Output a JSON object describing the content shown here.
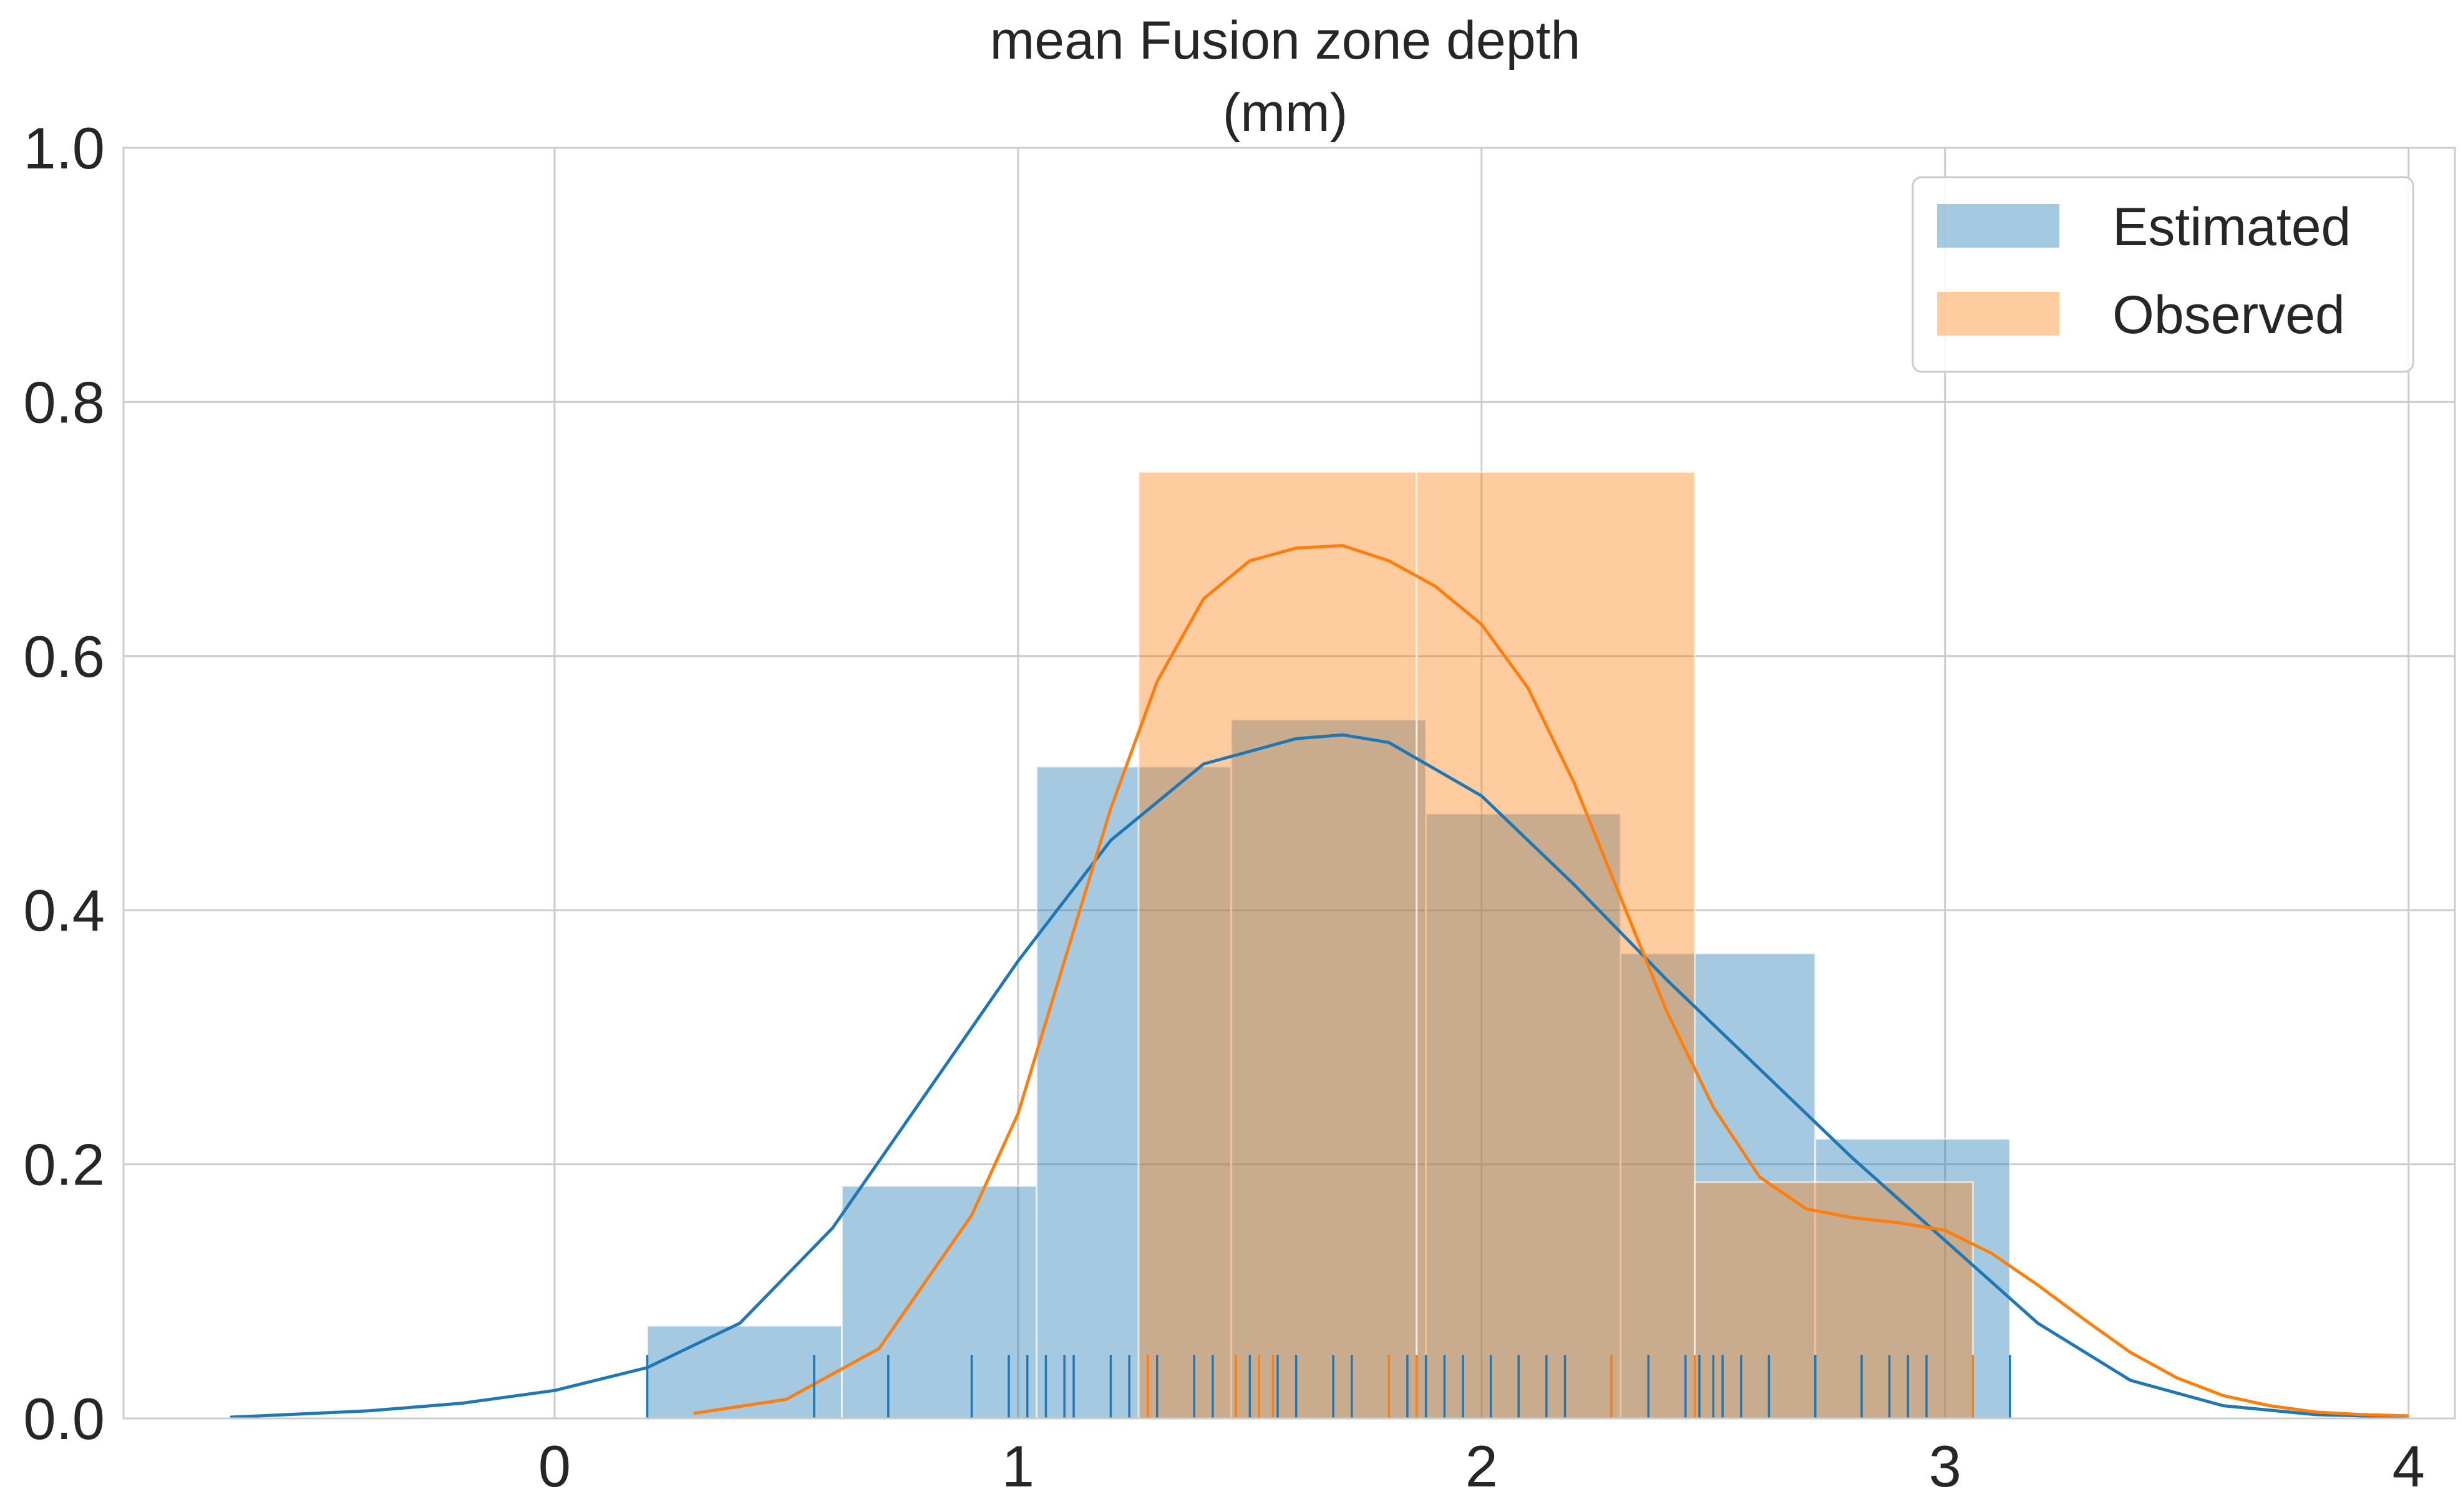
{
  "chart_data": {
    "type": "histogram",
    "title_lines": [
      "mean Fusion zone depth",
      "(mm)"
    ],
    "xlabel": "",
    "ylabel": "",
    "xlim": [
      -0.93,
      4.1
    ],
    "ylim": [
      0,
      1.0
    ],
    "xticks": [
      0,
      1,
      2,
      3,
      4
    ],
    "yticks": [
      0.0,
      0.2,
      0.4,
      0.6,
      0.8,
      1.0
    ],
    "ytick_labels": [
      "0.0",
      "0.2",
      "0.4",
      "0.6",
      "0.8",
      "1.0"
    ],
    "grid": true,
    "legend_position": "top-right",
    "series": [
      {
        "name": "Estimated",
        "color": "#1f77b4",
        "bins": [
          {
            "x0": 0.2,
            "x1": 0.62,
            "density": 0.073
          },
          {
            "x0": 0.62,
            "x1": 1.04,
            "density": 0.183
          },
          {
            "x0": 1.04,
            "x1": 1.46,
            "density": 0.513
          },
          {
            "x0": 1.46,
            "x1": 1.88,
            "density": 0.55
          },
          {
            "x0": 1.88,
            "x1": 2.3,
            "density": 0.476
          },
          {
            "x0": 2.3,
            "x1": 2.72,
            "density": 0.366
          },
          {
            "x0": 2.72,
            "x1": 3.14,
            "density": 0.22
          }
        ],
        "kde": {
          "x": [
            -0.7,
            -0.4,
            -0.2,
            0.0,
            0.2,
            0.4,
            0.6,
            0.8,
            1.0,
            1.2,
            1.4,
            1.6,
            1.7,
            1.8,
            2.0,
            2.2,
            2.4,
            2.6,
            2.8,
            3.0,
            3.2,
            3.4,
            3.6,
            3.8,
            4.0
          ],
          "y": [
            0.001,
            0.006,
            0.012,
            0.022,
            0.04,
            0.075,
            0.15,
            0.255,
            0.36,
            0.455,
            0.515,
            0.535,
            0.538,
            0.532,
            0.49,
            0.42,
            0.345,
            0.275,
            0.205,
            0.14,
            0.075,
            0.03,
            0.01,
            0.003,
            0.001
          ]
        },
        "rug": [
          0.2,
          0.56,
          0.72,
          0.9,
          0.98,
          1.02,
          1.06,
          1.1,
          1.12,
          1.2,
          1.24,
          1.3,
          1.38,
          1.42,
          1.5,
          1.56,
          1.6,
          1.68,
          1.72,
          1.8,
          1.84,
          1.86,
          1.88,
          1.92,
          1.96,
          2.02,
          2.08,
          2.14,
          2.18,
          2.28,
          2.36,
          2.44,
          2.47,
          2.5,
          2.52,
          2.56,
          2.62,
          2.72,
          2.82,
          2.88,
          2.92,
          2.96,
          3.14
        ]
      },
      {
        "name": "Observed",
        "color": "#ff7f0e",
        "bins": [
          {
            "x0": 1.26,
            "x1": 1.86,
            "density": 0.745
          },
          {
            "x0": 1.86,
            "x1": 2.46,
            "density": 0.745
          },
          {
            "x0": 2.46,
            "x1": 3.06,
            "density": 0.186
          }
        ],
        "kde": {
          "x": [
            0.3,
            0.5,
            0.7,
            0.9,
            1.0,
            1.1,
            1.2,
            1.3,
            1.4,
            1.5,
            1.6,
            1.7,
            1.8,
            1.9,
            2.0,
            2.1,
            2.2,
            2.3,
            2.4,
            2.5,
            2.6,
            2.7,
            2.8,
            2.9,
            3.0,
            3.1,
            3.2,
            3.3,
            3.4,
            3.5,
            3.6,
            3.7,
            3.8,
            3.9,
            4.0
          ],
          "y": [
            0.004,
            0.015,
            0.055,
            0.16,
            0.24,
            0.36,
            0.48,
            0.58,
            0.645,
            0.675,
            0.685,
            0.687,
            0.675,
            0.655,
            0.625,
            0.575,
            0.5,
            0.41,
            0.32,
            0.245,
            0.19,
            0.165,
            0.158,
            0.154,
            0.148,
            0.13,
            0.105,
            0.078,
            0.052,
            0.032,
            0.018,
            0.01,
            0.005,
            0.003,
            0.002
          ]
        },
        "rug": [
          1.28,
          1.47,
          1.52,
          1.55,
          1.8,
          1.86,
          2.28,
          2.46,
          3.06
        ]
      }
    ]
  }
}
